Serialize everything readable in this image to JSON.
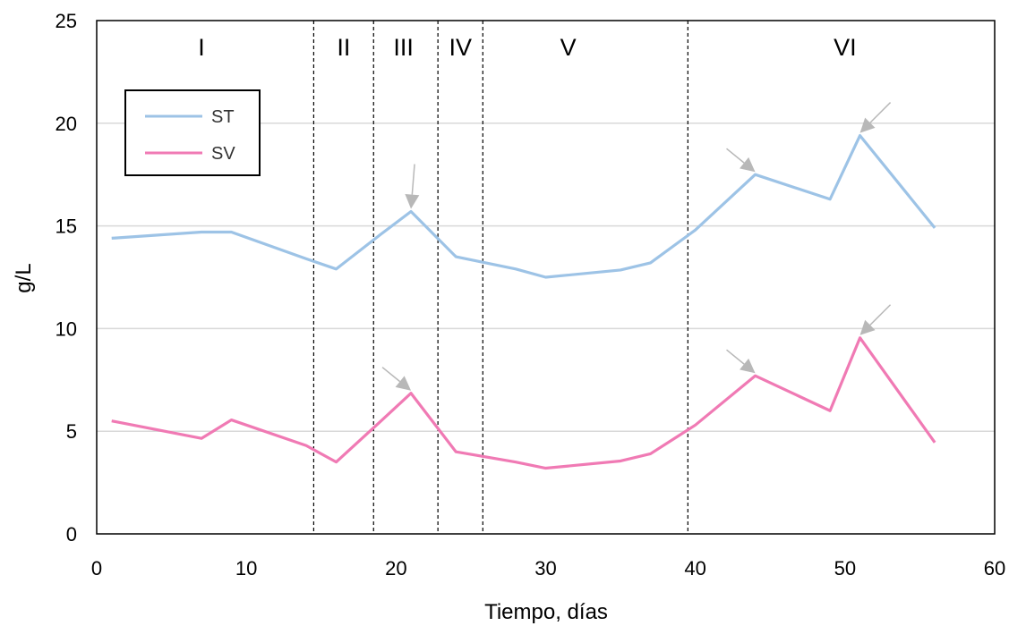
{
  "chart_data": {
    "type": "line",
    "title": "",
    "xlabel": "Tiempo, días",
    "ylabel": "g/L",
    "xlim": [
      0,
      60
    ],
    "ylim": [
      0,
      25
    ],
    "xticks": [
      0,
      10,
      20,
      30,
      40,
      50,
      60
    ],
    "yticks": [
      0,
      5,
      10,
      15,
      20,
      25
    ],
    "grid": "horizontal",
    "legend_position": "top-left",
    "phase_boundaries": [
      14.5,
      18.5,
      22.8,
      25.8,
      39.5
    ],
    "phases": [
      {
        "label": "I",
        "x": 7
      },
      {
        "label": "II",
        "x": 16.5
      },
      {
        "label": "III",
        "x": 20.5
      },
      {
        "label": "IV",
        "x": 24.3
      },
      {
        "label": "V",
        "x": 31.5
      },
      {
        "label": "VI",
        "x": 50
      }
    ],
    "series": [
      {
        "name": "ST",
        "color": "#9dc3e6",
        "x": [
          1,
          7,
          9,
          14,
          16,
          19,
          21,
          24,
          28,
          30,
          35,
          37,
          40,
          44,
          49,
          51,
          56
        ],
        "y": [
          14.4,
          14.7,
          14.7,
          13.4,
          12.9,
          14.6,
          15.7,
          13.5,
          12.9,
          12.5,
          12.85,
          13.2,
          14.8,
          17.5,
          16.3,
          19.4,
          14.9
        ]
      },
      {
        "name": "SV",
        "color": "#f07ab4",
        "x": [
          1,
          7,
          9,
          14,
          16,
          19,
          21,
          24,
          28,
          30,
          35,
          37,
          40,
          44,
          49,
          51,
          56
        ],
        "y": [
          5.5,
          4.65,
          5.55,
          4.3,
          3.5,
          5.5,
          6.85,
          4.0,
          3.5,
          3.2,
          3.55,
          3.9,
          5.3,
          7.7,
          6.0,
          9.55,
          4.45
        ]
      }
    ],
    "annotations": [
      {
        "type": "arrow",
        "series": "ST",
        "x": 21,
        "y": 15.7,
        "direction": "from-top"
      },
      {
        "type": "arrow",
        "series": "ST",
        "x": 44,
        "y": 17.5,
        "direction": "from-upper-left"
      },
      {
        "type": "arrow",
        "series": "ST",
        "x": 51,
        "y": 19.4,
        "direction": "from-upper-right"
      },
      {
        "type": "arrow",
        "series": "SV",
        "x": 21,
        "y": 6.85,
        "direction": "from-upper-left"
      },
      {
        "type": "arrow",
        "series": "SV",
        "x": 44,
        "y": 7.7,
        "direction": "from-upper-left"
      },
      {
        "type": "arrow",
        "series": "SV",
        "x": 51,
        "y": 9.55,
        "direction": "from-upper-right"
      }
    ],
    "annotation_color": "#b8b8b8"
  }
}
